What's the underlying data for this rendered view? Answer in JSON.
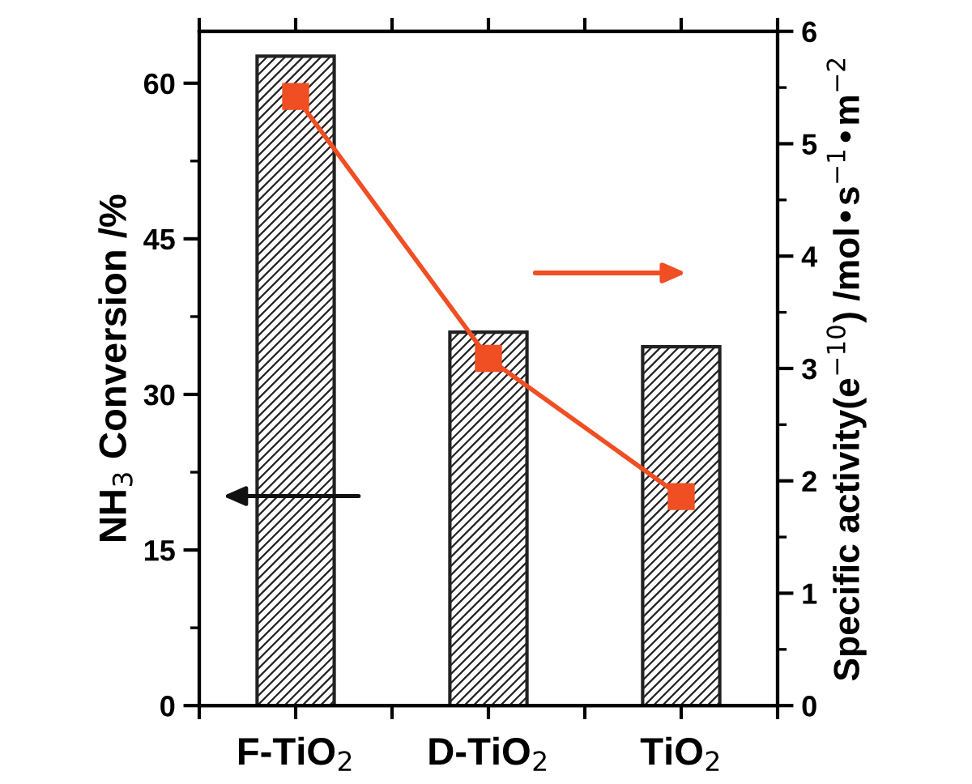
{
  "chart_data": {
    "type": "bar",
    "xlabel": null,
    "ylabel": "NH$_{3}$ Conversion /%",
    "y2label": "Specific activity(e$^{−10}$) /mol•s$^{−1}$•m$^{−2}$",
    "categories": [
      "F-TiO$_{2}$",
      "D-TiO$_{2}$",
      "TiO$_{2}$"
    ],
    "series": [
      {
        "color": "#222222",
        "values": [
          62.6,
          36.0,
          34.6
        ]
      },
      {
        "type": "line",
        "axis": "y2",
        "color": "#f04e23",
        "marker": "square",
        "line_style": "solid",
        "values": [
          5.42,
          3.09,
          1.86
        ]
      }
    ],
    "ylim": [
      0,
      65
    ],
    "yticks": [
      0,
      15,
      30,
      45,
      60
    ],
    "y2lim": [
      0,
      6
    ],
    "y2ticks": [
      0,
      1,
      2,
      3,
      4,
      5,
      6
    ],
    "grid": false,
    "legend": false
  }
}
